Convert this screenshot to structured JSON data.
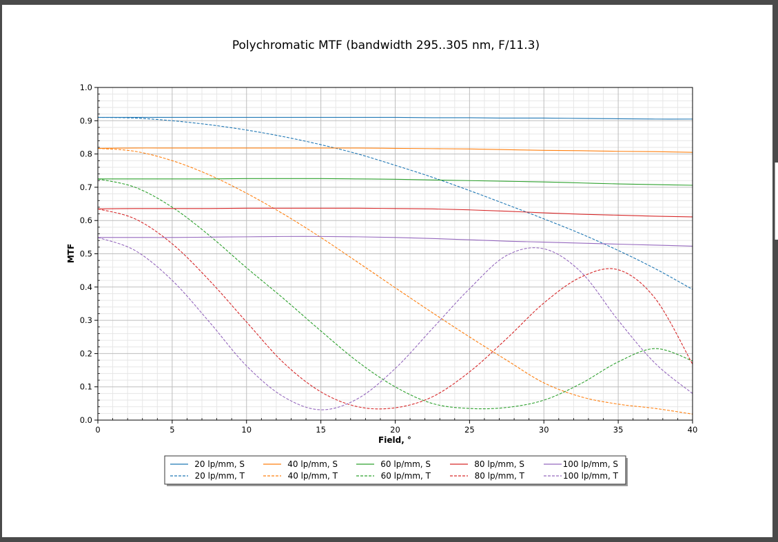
{
  "chart_data": {
    "type": "line",
    "title": "Polychromatic MTF (bandwidth 295..305 nm, F/11.3)",
    "xlabel": "Field, °",
    "ylabel": "MTF",
    "xlim": [
      0,
      40
    ],
    "ylim": [
      0,
      1.0
    ],
    "x_ticks": [
      "0",
      "5",
      "10",
      "15",
      "20",
      "25",
      "30",
      "35",
      "40"
    ],
    "y_ticks": [
      "0.0",
      "0.1",
      "0.2",
      "0.3",
      "0.4",
      "0.5",
      "0.6",
      "0.7",
      "0.8",
      "0.9",
      "1.0"
    ],
    "grid": true,
    "legend_position": "bottom-center",
    "x": [
      0,
      2.5,
      5,
      7.5,
      10,
      12.5,
      15,
      17.5,
      20,
      22.5,
      25,
      27.5,
      30,
      32.5,
      35,
      37.5,
      40
    ],
    "series": [
      {
        "name": "20 lp/mm, S",
        "color": "#1f77b4",
        "style": "solid",
        "values": [
          0.91,
          0.91,
          0.91,
          0.91,
          0.91,
          0.91,
          0.91,
          0.91,
          0.91,
          0.909,
          0.909,
          0.908,
          0.908,
          0.907,
          0.906,
          0.905,
          0.905
        ]
      },
      {
        "name": "20 lp/mm, T",
        "color": "#1f77b4",
        "style": "dashed",
        "values": [
          0.91,
          0.908,
          0.9,
          0.888,
          0.872,
          0.852,
          0.828,
          0.8,
          0.766,
          0.73,
          0.69,
          0.648,
          0.605,
          0.56,
          0.51,
          0.455,
          0.393
        ]
      },
      {
        "name": "40 lp/mm, S",
        "color": "#ff7f0e",
        "style": "solid",
        "values": [
          0.817,
          0.818,
          0.818,
          0.818,
          0.818,
          0.818,
          0.818,
          0.818,
          0.817,
          0.816,
          0.815,
          0.813,
          0.811,
          0.81,
          0.808,
          0.807,
          0.805
        ]
      },
      {
        "name": "40 lp/mm, T",
        "color": "#ff7f0e",
        "style": "dashed",
        "values": [
          0.817,
          0.808,
          0.78,
          0.737,
          0.682,
          0.619,
          0.549,
          0.474,
          0.398,
          0.323,
          0.25,
          0.18,
          0.112,
          0.07,
          0.048,
          0.035,
          0.018
        ]
      },
      {
        "name": "60 lp/mm, S",
        "color": "#2ca02c",
        "style": "solid",
        "values": [
          0.725,
          0.725,
          0.725,
          0.725,
          0.726,
          0.726,
          0.726,
          0.725,
          0.724,
          0.722,
          0.72,
          0.718,
          0.716,
          0.713,
          0.71,
          0.708,
          0.706
        ]
      },
      {
        "name": "60 lp/mm, T",
        "color": "#2ca02c",
        "style": "dashed",
        "values": [
          0.725,
          0.7,
          0.64,
          0.555,
          0.458,
          0.365,
          0.268,
          0.175,
          0.1,
          0.05,
          0.035,
          0.038,
          0.06,
          0.11,
          0.175,
          0.215,
          0.178
        ]
      },
      {
        "name": "80 lp/mm, S",
        "color": "#d62728",
        "style": "solid",
        "values": [
          0.635,
          0.636,
          0.636,
          0.636,
          0.637,
          0.637,
          0.637,
          0.637,
          0.636,
          0.635,
          0.632,
          0.628,
          0.623,
          0.619,
          0.616,
          0.613,
          0.611
        ]
      },
      {
        "name": "80 lp/mm, T",
        "color": "#d62728",
        "style": "dashed",
        "values": [
          0.635,
          0.605,
          0.53,
          0.42,
          0.295,
          0.172,
          0.085,
          0.04,
          0.037,
          0.07,
          0.145,
          0.245,
          0.352,
          0.43,
          0.452,
          0.365,
          0.168
        ]
      },
      {
        "name": "100 lp/mm, S",
        "color": "#9467bd",
        "style": "solid",
        "values": [
          0.549,
          0.549,
          0.549,
          0.55,
          0.551,
          0.552,
          0.552,
          0.551,
          0.549,
          0.546,
          0.542,
          0.538,
          0.535,
          0.532,
          0.529,
          0.526,
          0.523
        ]
      },
      {
        "name": "100 lp/mm, T",
        "color": "#9467bd",
        "style": "dashed",
        "values": [
          0.549,
          0.51,
          0.42,
          0.295,
          0.163,
          0.07,
          0.031,
          0.065,
          0.155,
          0.275,
          0.395,
          0.495,
          0.515,
          0.445,
          0.3,
          0.17,
          0.08
        ]
      }
    ]
  }
}
